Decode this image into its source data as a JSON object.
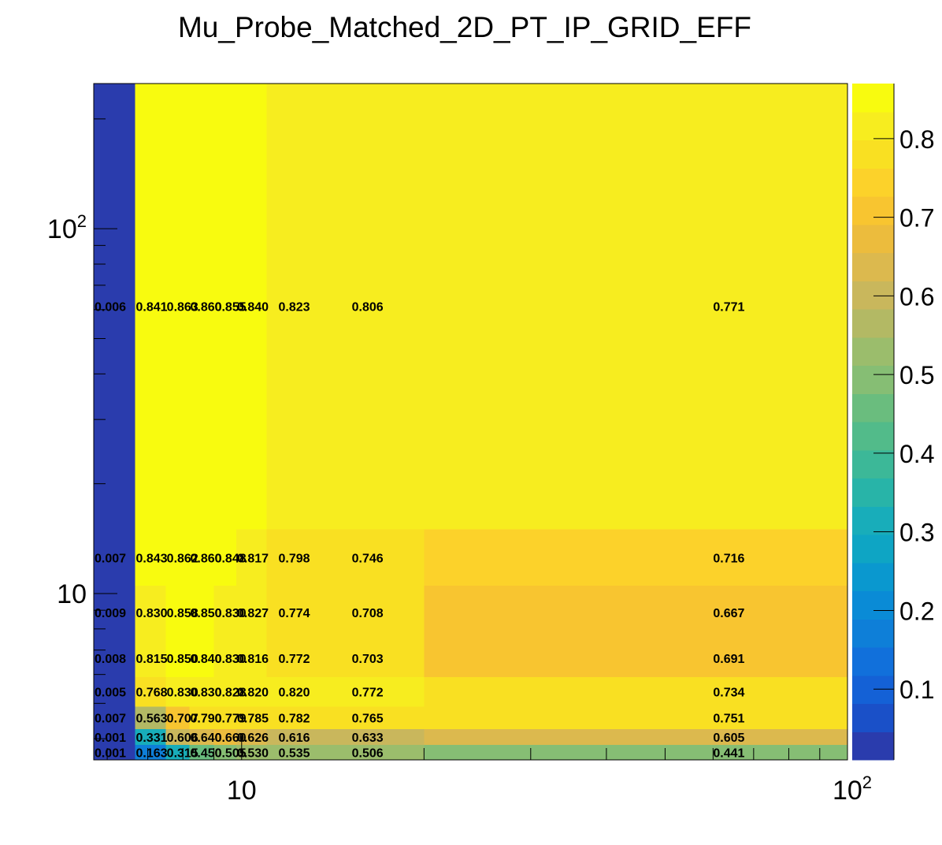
{
  "chart_data": {
    "type": "heatmap",
    "title": "Mu_Probe_Matched_2D_PT_IP_GRID_EFF",
    "xlabel": "",
    "ylabel": "",
    "x_scale": "log",
    "y_scale": "log",
    "xlim": [
      5.7,
      100
    ],
    "ylim": [
      3.5,
      250
    ],
    "x_ticklabels": [
      {
        "value": 10,
        "base": "10",
        "exp": ""
      },
      {
        "value": 100,
        "base": "10",
        "exp": "2"
      }
    ],
    "y_ticklabels": [
      {
        "value": 10,
        "base": "10",
        "exp": ""
      },
      {
        "value": 100,
        "base": "10",
        "exp": "2"
      }
    ],
    "colorbar": {
      "range": [
        0.01,
        0.87
      ],
      "ticks": [
        "0.1",
        "0.2",
        "0.3",
        "0.4",
        "0.5",
        "0.6",
        "0.7",
        "0.8"
      ],
      "colors": [
        "#2a3cad",
        "#1a50c8",
        "#1461d6",
        "#1170db",
        "#0e7fd8",
        "#0a8bd6",
        "#0a98cf",
        "#0ea5c4",
        "#18adba",
        "#28b4a8",
        "#3cb898",
        "#52bb8a",
        "#6abd7e",
        "#86be74",
        "#9bbd6c",
        "#b3b964",
        "#c9b75c",
        "#dcb94e",
        "#ecbc3d",
        "#f8c530",
        "#fcd22a",
        "#f9e022",
        "#f7ed1f",
        "#f8fb0f"
      ]
    },
    "cells": [
      {
        "x": [
          5.7,
          6.67
        ],
        "y": [
          15,
          250
        ],
        "value": 0.006,
        "label": "0.006"
      },
      {
        "x": [
          6.67,
          7.5
        ],
        "y": [
          15,
          250
        ],
        "value": 0.841,
        "label": "0.841"
      },
      {
        "x": [
          7.5,
          8.2
        ],
        "y": [
          15,
          250
        ],
        "value": 0.863,
        "label": "0.863"
      },
      {
        "x": [
          8.2,
          9.0
        ],
        "y": [
          15,
          250
        ],
        "value": 0.86,
        "label": "0.860"
      },
      {
        "x": [
          9.0,
          9.8
        ],
        "y": [
          15,
          250
        ],
        "value": 0.855,
        "label": "0.855"
      },
      {
        "x": [
          9.8,
          11.0
        ],
        "y": [
          15,
          250
        ],
        "value": 0.84,
        "label": "0.840"
      },
      {
        "x": [
          11.0,
          20.0
        ],
        "y": [
          15,
          250
        ],
        "value": 0.823,
        "label": "0.823",
        "label_x": 11.5
      },
      {
        "x": [
          20.0,
          100.0
        ],
        "y": [
          15,
          250
        ],
        "value": 0.806,
        "label": "0.806",
        "label_x": 15.2
      },
      {
        "x": [
          20.0,
          100.0
        ],
        "y": [
          15,
          250
        ],
        "value": 0.771,
        "label": "0.771",
        "label_x": 60.0
      },
      {
        "x": [
          5.7,
          6.67
        ],
        "y": [
          10.5,
          15
        ],
        "value": 0.007,
        "label": "0.007"
      },
      {
        "x": [
          6.67,
          7.5
        ],
        "y": [
          10.5,
          15
        ],
        "value": 0.843,
        "label": "0.843"
      },
      {
        "x": [
          7.5,
          8.2
        ],
        "y": [
          10.5,
          15
        ],
        "value": 0.862,
        "label": "0.862"
      },
      {
        "x": [
          8.2,
          9.0
        ],
        "y": [
          10.5,
          15
        ],
        "value": 0.86,
        "label": "0.860"
      },
      {
        "x": [
          9.0,
          9.8
        ],
        "y": [
          10.5,
          15
        ],
        "value": 0.848,
        "label": "0.848"
      },
      {
        "x": [
          9.8,
          11.0
        ],
        "y": [
          10.5,
          15
        ],
        "value": 0.817,
        "label": "0.817"
      },
      {
        "x": [
          11.0,
          20.0
        ],
        "y": [
          10.5,
          15
        ],
        "value": 0.798,
        "label": "0.798",
        "label_x": 11.5
      },
      {
        "x": [
          20.0,
          100.0
        ],
        "y": [
          10.5,
          15
        ],
        "value": 0.746,
        "label": "0.746",
        "label_x": 15.2
      },
      {
        "x": [
          20.0,
          100.0
        ],
        "y": [
          10.5,
          15
        ],
        "value": 0.716,
        "label": "0.716",
        "label_x": 60.0
      },
      {
        "x": [
          5.7,
          6.67
        ],
        "y": [
          7.5,
          10.5
        ],
        "value": 0.009,
        "label": "0.009"
      },
      {
        "x": [
          6.67,
          7.5
        ],
        "y": [
          7.5,
          10.5
        ],
        "value": 0.83,
        "label": "0.830"
      },
      {
        "x": [
          7.5,
          8.2
        ],
        "y": [
          7.5,
          10.5
        ],
        "value": 0.858,
        "label": "0.858"
      },
      {
        "x": [
          8.2,
          9.0
        ],
        "y": [
          7.5,
          10.5
        ],
        "value": 0.85,
        "label": "0.850"
      },
      {
        "x": [
          9.0,
          9.8
        ],
        "y": [
          7.5,
          10.5
        ],
        "value": 0.83,
        "label": "0.830"
      },
      {
        "x": [
          9.8,
          11.0
        ],
        "y": [
          7.5,
          10.5
        ],
        "value": 0.827,
        "label": "0.827"
      },
      {
        "x": [
          11.0,
          20.0
        ],
        "y": [
          7.5,
          10.5
        ],
        "value": 0.774,
        "label": "0.774",
        "label_x": 11.5
      },
      {
        "x": [
          20.0,
          100.0
        ],
        "y": [
          7.5,
          10.5
        ],
        "value": 0.708,
        "label": "0.708",
        "label_x": 15.2
      },
      {
        "x": [
          20.0,
          100.0
        ],
        "y": [
          7.5,
          10.5
        ],
        "value": 0.667,
        "label": "0.667",
        "label_x": 60.0
      },
      {
        "x": [
          5.7,
          6.67
        ],
        "y": [
          5.9,
          7.5
        ],
        "value": 0.008,
        "label": "0.008"
      },
      {
        "x": [
          6.67,
          7.5
        ],
        "y": [
          5.9,
          7.5
        ],
        "value": 0.815,
        "label": "0.815"
      },
      {
        "x": [
          7.5,
          8.2
        ],
        "y": [
          5.9,
          7.5
        ],
        "value": 0.85,
        "label": "0.850"
      },
      {
        "x": [
          8.2,
          9.0
        ],
        "y": [
          5.9,
          7.5
        ],
        "value": 0.84,
        "label": "0.840"
      },
      {
        "x": [
          9.0,
          9.8
        ],
        "y": [
          5.9,
          7.5
        ],
        "value": 0.83,
        "label": "0.830"
      },
      {
        "x": [
          9.8,
          11.0
        ],
        "y": [
          5.9,
          7.5
        ],
        "value": 0.816,
        "label": "0.816"
      },
      {
        "x": [
          11.0,
          20.0
        ],
        "y": [
          5.9,
          7.5
        ],
        "value": 0.772,
        "label": "0.772",
        "label_x": 11.5
      },
      {
        "x": [
          20.0,
          100.0
        ],
        "y": [
          5.9,
          7.5
        ],
        "value": 0.703,
        "label": "0.703",
        "label_x": 15.2
      },
      {
        "x": [
          20.0,
          100.0
        ],
        "y": [
          5.9,
          7.5
        ],
        "value": 0.691,
        "label": "0.691",
        "label_x": 60.0
      },
      {
        "x": [
          5.7,
          6.67
        ],
        "y": [
          4.9,
          5.9
        ],
        "value": 0.005,
        "label": "0.005"
      },
      {
        "x": [
          6.67,
          7.5
        ],
        "y": [
          4.9,
          5.9
        ],
        "value": 0.768,
        "label": "0.768"
      },
      {
        "x": [
          7.5,
          8.2
        ],
        "y": [
          4.9,
          5.9
        ],
        "value": 0.83,
        "label": "0.830"
      },
      {
        "x": [
          8.2,
          9.0
        ],
        "y": [
          4.9,
          5.9
        ],
        "value": 0.83,
        "label": "0.830"
      },
      {
        "x": [
          9.0,
          9.8
        ],
        "y": [
          4.9,
          5.9
        ],
        "value": 0.828,
        "label": "0.828"
      },
      {
        "x": [
          9.8,
          11.0
        ],
        "y": [
          4.9,
          5.9
        ],
        "value": 0.82,
        "label": "0.820"
      },
      {
        "x": [
          11.0,
          20.0
        ],
        "y": [
          4.9,
          5.9
        ],
        "value": 0.82,
        "label": "0.820",
        "label_x": 11.5
      },
      {
        "x": [
          20.0,
          100.0
        ],
        "y": [
          4.9,
          5.9
        ],
        "value": 0.772,
        "label": "0.772",
        "label_x": 15.2
      },
      {
        "x": [
          20.0,
          100.0
        ],
        "y": [
          4.9,
          5.9
        ],
        "value": 0.734,
        "label": "0.734",
        "label_x": 60.0
      },
      {
        "x": [
          5.7,
          6.67
        ],
        "y": [
          4.25,
          4.9
        ],
        "value": 0.007,
        "label": "0.007"
      },
      {
        "x": [
          6.67,
          7.5
        ],
        "y": [
          4.25,
          4.9
        ],
        "value": 0.563,
        "label": "0.563"
      },
      {
        "x": [
          7.5,
          8.2
        ],
        "y": [
          4.25,
          4.9
        ],
        "value": 0.707,
        "label": "0.707"
      },
      {
        "x": [
          8.2,
          9.0
        ],
        "y": [
          4.25,
          4.9
        ],
        "value": 0.79,
        "label": "0.790"
      },
      {
        "x": [
          9.0,
          9.8
        ],
        "y": [
          4.25,
          4.9
        ],
        "value": 0.779,
        "label": "0.779"
      },
      {
        "x": [
          9.8,
          11.0
        ],
        "y": [
          4.25,
          4.9
        ],
        "value": 0.785,
        "label": "0.785"
      },
      {
        "x": [
          11.0,
          20.0
        ],
        "y": [
          4.25,
          4.9
        ],
        "value": 0.782,
        "label": "0.782",
        "label_x": 11.5
      },
      {
        "x": [
          20.0,
          100.0
        ],
        "y": [
          4.25,
          4.9
        ],
        "value": 0.765,
        "label": "0.765",
        "label_x": 15.2
      },
      {
        "x": [
          20.0,
          100.0
        ],
        "y": [
          4.25,
          4.9
        ],
        "value": 0.751,
        "label": "0.751",
        "label_x": 60.0
      },
      {
        "x": [
          5.7,
          6.67
        ],
        "y": [
          3.85,
          4.25
        ],
        "value": 0.001,
        "label": "0.001"
      },
      {
        "x": [
          6.67,
          7.5
        ],
        "y": [
          3.85,
          4.25
        ],
        "value": 0.331,
        "label": "0.331"
      },
      {
        "x": [
          7.5,
          8.2
        ],
        "y": [
          3.85,
          4.25
        ],
        "value": 0.606,
        "label": "0.606"
      },
      {
        "x": [
          8.2,
          9.0
        ],
        "y": [
          3.85,
          4.25
        ],
        "value": 0.64,
        "label": "0.640"
      },
      {
        "x": [
          9.0,
          9.8
        ],
        "y": [
          3.85,
          4.25
        ],
        "value": 0.66,
        "label": "0.660"
      },
      {
        "x": [
          9.8,
          11.0
        ],
        "y": [
          3.85,
          4.25
        ],
        "value": 0.626,
        "label": "0.626"
      },
      {
        "x": [
          11.0,
          20.0
        ],
        "y": [
          3.85,
          4.25
        ],
        "value": 0.616,
        "label": "0.616",
        "label_x": 11.5
      },
      {
        "x": [
          20.0,
          100.0
        ],
        "y": [
          3.85,
          4.25
        ],
        "value": 0.633,
        "label": "0.633",
        "label_x": 15.2
      },
      {
        "x": [
          20.0,
          100.0
        ],
        "y": [
          3.85,
          4.25
        ],
        "value": 0.605,
        "label": "0.605",
        "label_x": 60.0
      },
      {
        "x": [
          5.7,
          6.67
        ],
        "y": [
          3.5,
          3.85
        ],
        "value": 0.001,
        "label": "0.001"
      },
      {
        "x": [
          6.67,
          7.5
        ],
        "y": [
          3.5,
          3.85
        ],
        "value": 0.163,
        "label": "0.163"
      },
      {
        "x": [
          7.5,
          8.2
        ],
        "y": [
          3.5,
          3.85
        ],
        "value": 0.315,
        "label": "0.315"
      },
      {
        "x": [
          8.2,
          9.0
        ],
        "y": [
          3.5,
          3.85
        ],
        "value": 0.45,
        "label": "0.450"
      },
      {
        "x": [
          9.0,
          9.8
        ],
        "y": [
          3.5,
          3.85
        ],
        "value": 0.505,
        "label": "0.505"
      },
      {
        "x": [
          9.8,
          11.0
        ],
        "y": [
          3.5,
          3.85
        ],
        "value": 0.53,
        "label": "0.530"
      },
      {
        "x": [
          11.0,
          20.0
        ],
        "y": [
          3.5,
          3.85
        ],
        "value": 0.535,
        "label": "0.535",
        "label_x": 11.5
      },
      {
        "x": [
          20.0,
          100.0
        ],
        "y": [
          3.5,
          3.85
        ],
        "value": 0.506,
        "label": "0.506",
        "label_x": 15.2
      },
      {
        "x": [
          20.0,
          100.0
        ],
        "y": [
          3.5,
          3.85
        ],
        "value": 0.441,
        "label": "0.441",
        "label_x": 60.0
      }
    ]
  }
}
